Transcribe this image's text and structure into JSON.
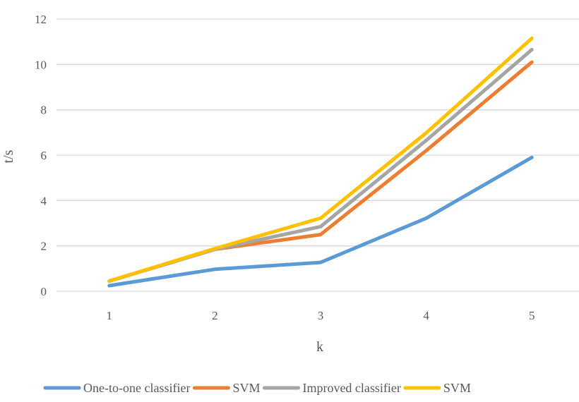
{
  "chart_data": {
    "type": "line",
    "x": [
      "1",
      "2",
      "3",
      "4",
      "5"
    ],
    "xlabel": "k",
    "ylabel": "t/s",
    "ylim": [
      0,
      12
    ],
    "yticks": [
      0,
      2,
      4,
      6,
      8,
      10,
      12
    ],
    "grid": true,
    "legend_position": "bottom",
    "series": [
      {
        "name": "One-to-one classifier",
        "color": "#5B9BD5",
        "values": [
          0.25,
          0.97,
          1.27,
          3.22,
          5.9
        ]
      },
      {
        "name": "SVM",
        "color": "#ED7D31",
        "values": [
          0.45,
          1.85,
          2.5,
          6.2,
          10.1
        ]
      },
      {
        "name": "Improved classifier",
        "color": "#A5A5A5",
        "values": [
          0.45,
          1.85,
          2.85,
          6.65,
          10.65
        ]
      },
      {
        "name": "SVM",
        "color": "#FFC000",
        "values": [
          0.45,
          1.88,
          3.22,
          6.98,
          11.15
        ]
      }
    ]
  }
}
